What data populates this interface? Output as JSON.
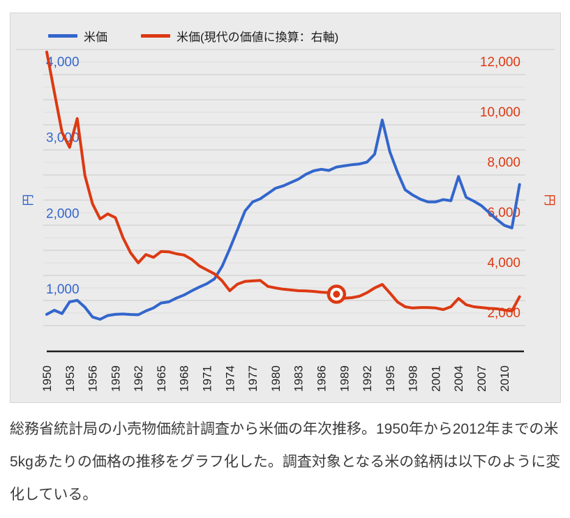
{
  "caption": {
    "text": "総務省統計局の小売物価統計調査から米価の年次推移。1950年から2012年までの米5kgあたりの価格の推移をグラフ化した。調査対象となる米の銘柄は以下のように変化している。"
  },
  "chart_data": {
    "type": "line",
    "title": "",
    "grid": true,
    "legend_position": "top",
    "years": [
      1950,
      1951,
      1952,
      1953,
      1954,
      1955,
      1956,
      1957,
      1958,
      1959,
      1960,
      1961,
      1962,
      1963,
      1964,
      1965,
      1966,
      1967,
      1968,
      1969,
      1970,
      1971,
      1972,
      1973,
      1974,
      1975,
      1976,
      1977,
      1978,
      1979,
      1980,
      1981,
      1982,
      1983,
      1984,
      1985,
      1986,
      1987,
      1988,
      1989,
      1990,
      1991,
      1992,
      1993,
      1994,
      1995,
      1996,
      1997,
      1998,
      1999,
      2000,
      2001,
      2002,
      2003,
      2004,
      2005,
      2006,
      2007,
      2008,
      2009,
      2010,
      2011,
      2012
    ],
    "series": [
      {
        "name": "米価",
        "axis": "left",
        "color": "#3366cc",
        "values": [
          835,
          890,
          845,
          1000,
          1020,
          930,
          800,
          770,
          820,
          835,
          840,
          833,
          830,
          880,
          920,
          985,
          1000,
          1050,
          1090,
          1145,
          1195,
          1240,
          1305,
          1470,
          1700,
          1950,
          2200,
          2320,
          2360,
          2430,
          2500,
          2530,
          2575,
          2620,
          2685,
          2730,
          2750,
          2735,
          2780,
          2795,
          2810,
          2820,
          2845,
          2950,
          3400,
          2980,
          2710,
          2480,
          2410,
          2355,
          2320,
          2320,
          2350,
          2335,
          2655,
          2380,
          2330,
          2270,
          2180,
          2090,
          2010,
          1975,
          2550
        ]
      },
      {
        "name": "米価(現代の価値に換算：右軸)",
        "axis": "right",
        "color": "#dc3912",
        "values": [
          12900,
          11300,
          9700,
          9100,
          10250,
          7980,
          6850,
          6250,
          6450,
          6300,
          5500,
          4900,
          4500,
          4830,
          4720,
          4950,
          4940,
          4860,
          4810,
          4640,
          4380,
          4220,
          4060,
          3780,
          3390,
          3650,
          3760,
          3780,
          3800,
          3560,
          3500,
          3450,
          3420,
          3390,
          3380,
          3360,
          3330,
          3310,
          3250,
          3090,
          3110,
          3170,
          3310,
          3500,
          3640,
          3300,
          2940,
          2750,
          2700,
          2720,
          2720,
          2700,
          2640,
          2750,
          3080,
          2830,
          2750,
          2720,
          2690,
          2670,
          2620,
          2580,
          3150
        ],
        "highlight_point": {
          "year": 1988,
          "value": 3250
        }
      }
    ],
    "left_axis": {
      "title": "円",
      "color": "#3366cc",
      "ticks": [
        "1,000",
        "2,000",
        "3,000",
        "4,000"
      ],
      "tick_values": [
        1000,
        2000,
        3000,
        4000
      ],
      "range": [
        600,
        4300
      ]
    },
    "right_axis": {
      "title": "円",
      "color": "#dc3912",
      "ticks": [
        "2,000",
        "4,000",
        "6,000",
        "8,000",
        "10,000",
        "12,000"
      ],
      "tick_values": [
        2000,
        4000,
        6000,
        8000,
        10000,
        12000
      ],
      "range": [
        2000,
        13000
      ]
    },
    "x_axis": {
      "tick_years": [
        1950,
        1953,
        1956,
        1959,
        1962,
        1965,
        1968,
        1971,
        1974,
        1977,
        1980,
        1983,
        1986,
        1989,
        1992,
        1995,
        1998,
        2001,
        2004,
        2007,
        2010
      ]
    }
  }
}
